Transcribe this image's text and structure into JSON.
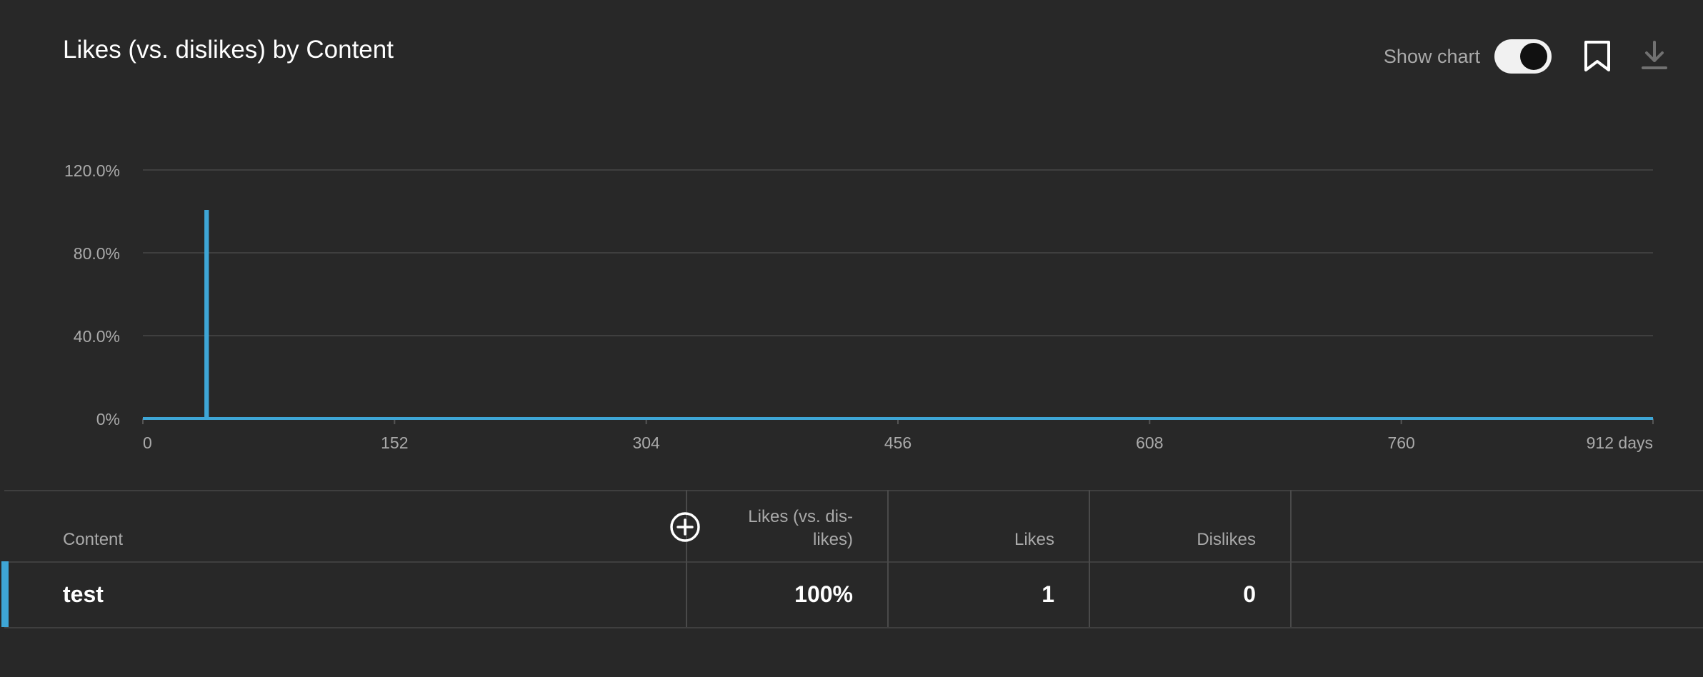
{
  "card": {
    "title": "Likes (vs. dislikes) by Content",
    "show_chart_label": "Show chart",
    "show_chart_on": true
  },
  "icons": {
    "toggle": "toggle-switch",
    "bookmark": "bookmark-icon",
    "download": "download-icon",
    "add_column": "add-circle-icon"
  },
  "colors": {
    "series": "#3ea6d6",
    "background": "#282828",
    "grid": "#3f3f3f"
  },
  "chart_data": {
    "type": "line",
    "x_ticks": [
      "0",
      "152",
      "304",
      "456",
      "608",
      "760",
      "912 days"
    ],
    "y_ticks": [
      "120.0%",
      "80.0%",
      "40.0%",
      "0%"
    ],
    "xlim": [
      0,
      912
    ],
    "ylim": [
      0,
      120
    ],
    "grid": true,
    "series": [
      {
        "color": "#3ea6d6",
        "points": [
          [
            0,
            0
          ],
          [
            38,
            0
          ],
          [
            38,
            100
          ],
          [
            39,
            100
          ],
          [
            39,
            0
          ],
          [
            912,
            0
          ]
        ]
      }
    ]
  },
  "table": {
    "headers": {
      "content": "Content",
      "likes_vs_dislikes_line1": "Likes (vs. dis-",
      "likes_vs_dislikes_line2": "likes)",
      "likes": "Likes",
      "dislikes": "Dislikes"
    },
    "rows": [
      {
        "content": "test",
        "likes_vs_dislikes": "100%",
        "likes": "1",
        "dislikes": "0"
      }
    ]
  }
}
